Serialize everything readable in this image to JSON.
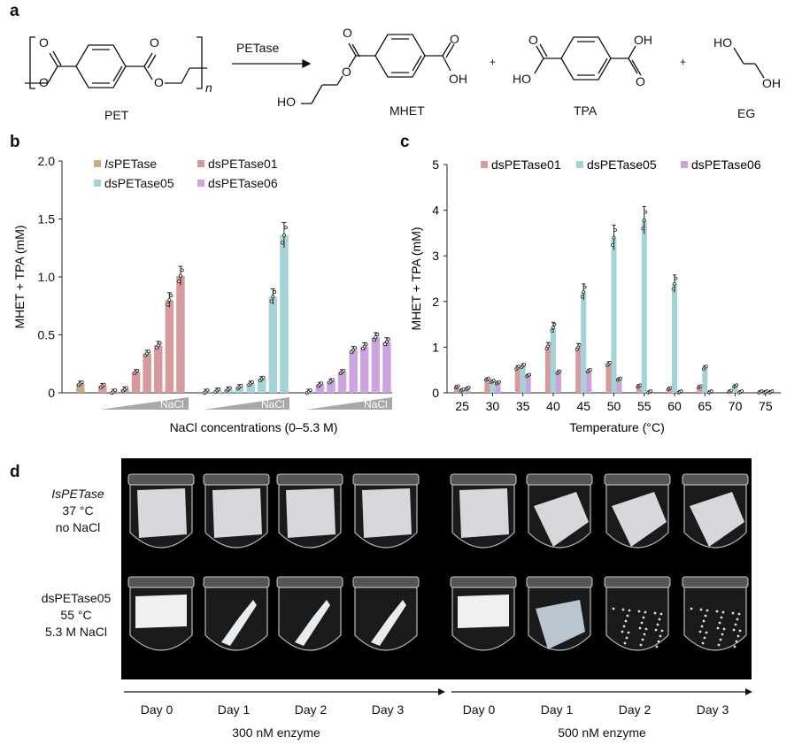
{
  "panels": {
    "a": "a",
    "b": "b",
    "c": "c",
    "d": "d"
  },
  "panel_a": {
    "reaction_arrow_label": "PETase",
    "compounds": [
      "PET",
      "MHET",
      "TPA",
      "EG"
    ],
    "plus": "+",
    "atoms": {
      "O": "O",
      "HO": "HO",
      "OH": "OH",
      "n": "n"
    }
  },
  "chart_data": [
    {
      "panel": "b",
      "type": "bar",
      "ylabel": "MHET + TPA (mM)",
      "xlabel": "NaCl concentrations (0–5.3 M)",
      "ylim": [
        0,
        2.0
      ],
      "yticks": [
        "0",
        "0.5",
        "1.0",
        "1.5",
        "2.0"
      ],
      "gradient_label": "NaCl",
      "legend": [
        "IsPETase",
        "dsPETase01",
        "dsPETase05",
        "dsPETase06"
      ],
      "colors": {
        "IsPETase": "#c8a98a",
        "dsPETase01": "#d79a9c",
        "dsPETase05": "#a3d3d6",
        "dsPETase06": "#cba3df"
      },
      "groups": [
        {
          "name": "IsPETase",
          "values": [
            0.08
          ]
        },
        {
          "name": "dsPETase01",
          "values": [
            0.06,
            0.01,
            0.03,
            0.18,
            0.34,
            0.41,
            0.8,
            1.01
          ]
        },
        {
          "name": "dsPETase05",
          "values": [
            0.01,
            0.02,
            0.03,
            0.05,
            0.08,
            0.12,
            0.83,
            1.36
          ]
        },
        {
          "name": "dsPETase06",
          "values": [
            0.01,
            0.07,
            0.1,
            0.18,
            0.37,
            0.4,
            0.48,
            0.44
          ]
        }
      ]
    },
    {
      "panel": "c",
      "type": "bar",
      "ylabel": "MHET + TPA (mM)",
      "xlabel": "Temperature (°C)",
      "ylim": [
        0,
        5
      ],
      "yticks": [
        "0",
        "1",
        "2",
        "3",
        "4",
        "5"
      ],
      "categories": [
        "25",
        "30",
        "35",
        "40",
        "45",
        "50",
        "55",
        "60",
        "65",
        "70",
        "75"
      ],
      "series": [
        {
          "name": "dsPETase01",
          "color": "#d79a9c",
          "values": [
            0.13,
            0.3,
            0.55,
            1.02,
            1.0,
            0.63,
            0.15,
            0.09,
            0.13,
            0.03,
            0.02
          ]
        },
        {
          "name": "dsPETase05",
          "color": "#a3d3d6",
          "values": [
            0.06,
            0.25,
            0.59,
            1.43,
            2.21,
            3.4,
            3.78,
            2.39,
            0.55,
            0.15,
            0.02
          ]
        },
        {
          "name": "dsPETase06",
          "color": "#cba3df",
          "values": [
            0.1,
            0.22,
            0.38,
            0.45,
            0.48,
            0.3,
            0.02,
            0.02,
            0.02,
            0.02,
            0.02
          ]
        }
      ]
    }
  ],
  "panel_d": {
    "row_labels": [
      {
        "l1": "IsPETase",
        "l2": "37 °C",
        "l3": "no NaCl"
      },
      {
        "l1": "dsPETase05",
        "l2": "55 °C",
        "l3": "5.3 M NaCl"
      }
    ],
    "days": [
      "Day 0",
      "Day 1",
      "Day 2",
      "Day 3"
    ],
    "enzyme_groups": [
      "300 nM enzyme",
      "500 nM enzyme"
    ]
  }
}
